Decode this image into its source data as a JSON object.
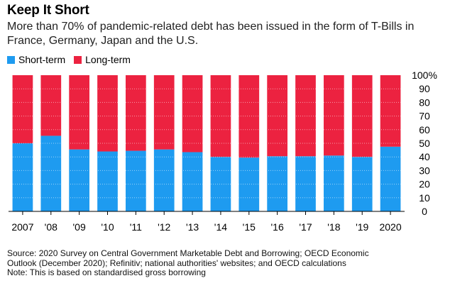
{
  "header": {
    "title": "Keep It Short",
    "subtitle": "More than 70% of pandemic-related debt has been issued in the form of T-Bills in France, Germany, Japan and the U.S."
  },
  "legend": [
    {
      "label": "Short-term",
      "color": "#1E9BF0"
    },
    {
      "label": "Long-term",
      "color": "#EC2240"
    }
  ],
  "chart_data": {
    "type": "bar",
    "stacked": true,
    "categories": [
      "2007",
      "'08",
      "'09",
      "'10",
      "'11",
      "'12",
      "'13",
      "'14",
      "'15",
      "'16",
      "'17",
      "'18",
      "'19",
      "2020"
    ],
    "series": [
      {
        "name": "Short-term",
        "color": "#1E9BF0",
        "values": [
          50,
          55.5,
          45.5,
          44,
          44.5,
          45.5,
          43.5,
          40,
          39.5,
          40.5,
          40.5,
          41,
          40,
          47.5
        ]
      },
      {
        "name": "Long-term",
        "color": "#EC2240",
        "values": [
          50,
          44.5,
          54.5,
          56,
          55.5,
          54.5,
          56.5,
          60,
          60.5,
          59.5,
          59.5,
          59,
          60,
          52.5
        ]
      }
    ],
    "ylim": [
      0,
      100
    ],
    "yticks": [
      "0",
      "10",
      "20",
      "30",
      "40",
      "50",
      "60",
      "70",
      "80",
      "90",
      "100%"
    ],
    "grid": true,
    "legend_position": "top-left"
  },
  "footer": {
    "source_line1": "Source: 2020 Survey on Central Government Marketable Debt and Borrowing; OECD Economic",
    "source_line2": "Outlook (December 2020); Refinitiv; national authorities' websites; and OECD calculations",
    "note": "Note: This is based on standardised gross borrowing"
  }
}
